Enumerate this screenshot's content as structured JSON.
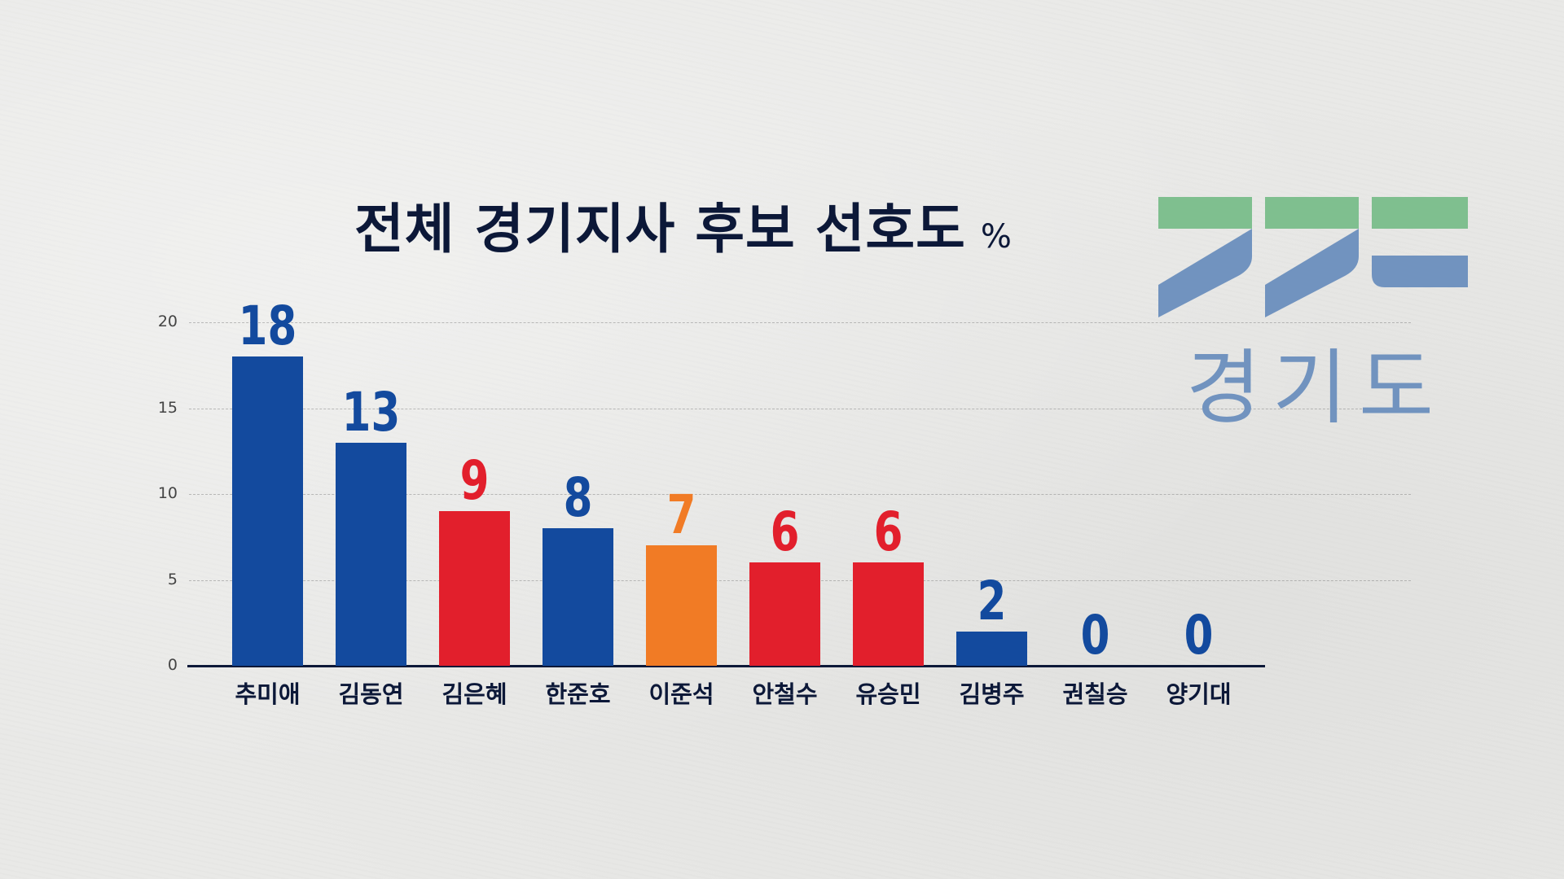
{
  "title": {
    "text": "전체 경기지사 후보 선호도",
    "unit": "%"
  },
  "logo": {
    "text": "경기도",
    "colors": {
      "green": "#7fbf8f",
      "blue": "#7193bf"
    }
  },
  "colors": {
    "blue": "#134a9e",
    "red": "#e21f2c",
    "orange": "#f17b25",
    "axis": "#0c1838"
  },
  "y_ticks": [
    "0",
    "5",
    "10",
    "15",
    "20"
  ],
  "chart_data": {
    "type": "bar",
    "title": "전체 경기지사 후보 선호도 %",
    "xlabel": "",
    "ylabel": "",
    "ylim": [
      0,
      20
    ],
    "yticks": [
      0,
      5,
      10,
      15,
      20
    ],
    "grid": true,
    "categories": [
      "추미애",
      "김동연",
      "김은혜",
      "한준호",
      "이준석",
      "안철수",
      "유승민",
      "김병주",
      "권칠승",
      "양기대"
    ],
    "values": [
      18,
      13,
      9,
      8,
      7,
      6,
      6,
      2,
      0,
      0
    ],
    "labels": [
      "18",
      "13",
      "9",
      "8",
      "7",
      "6",
      "6",
      "2",
      "0",
      "0"
    ],
    "bar_colors": [
      "#134a9e",
      "#134a9e",
      "#e21f2c",
      "#134a9e",
      "#f17b25",
      "#e21f2c",
      "#e21f2c",
      "#134a9e",
      "#134a9e",
      "#134a9e"
    ]
  }
}
